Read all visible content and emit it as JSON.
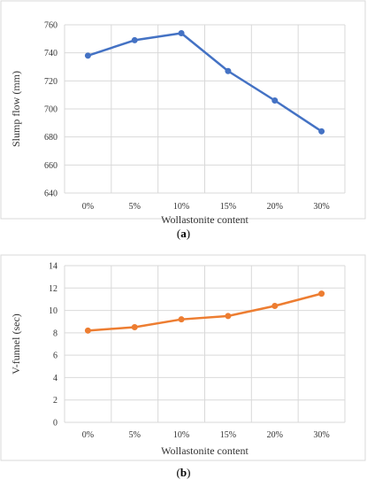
{
  "captions": {
    "a_open": "(",
    "a_letter": "a",
    "a_close": ")",
    "b_open": "(",
    "b_letter": "b",
    "b_close": ")"
  },
  "chart_data": [
    {
      "id": "a",
      "type": "line",
      "title": "",
      "xlabel": "Wollastonite content",
      "ylabel": "Slump flow (mm)",
      "categories": [
        "0%",
        "5%",
        "10%",
        "15%",
        "20%",
        "30%"
      ],
      "series": [
        {
          "color": "#4472C4",
          "values": [
            738,
            749,
            754,
            727,
            706,
            684
          ]
        }
      ],
      "ylim": [
        640,
        760
      ],
      "yticks": [
        640,
        660,
        680,
        700,
        720,
        740,
        760
      ],
      "grid": true,
      "legend": "none"
    },
    {
      "id": "b",
      "type": "line",
      "title": "",
      "xlabel": "Wollastonite content",
      "ylabel": "V-funnel (sec)",
      "categories": [
        "0%",
        "5%",
        "10%",
        "15%",
        "20%",
        "30%"
      ],
      "series": [
        {
          "color": "#ED7D31",
          "values": [
            8.2,
            8.5,
            9.2,
            9.5,
            10.4,
            11.5
          ]
        }
      ],
      "ylim": [
        0,
        14
      ],
      "yticks": [
        0,
        2,
        4,
        6,
        8,
        10,
        12,
        14
      ],
      "grid": true,
      "legend": "none"
    }
  ]
}
